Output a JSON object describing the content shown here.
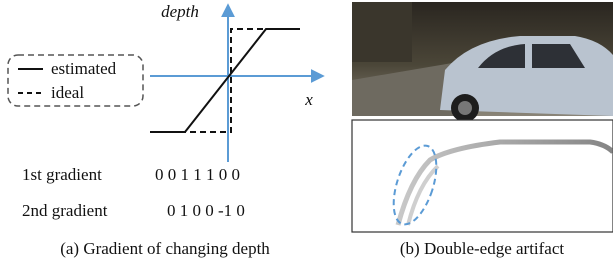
{
  "axes": {
    "y_label": "depth",
    "x_label": "x"
  },
  "legend": {
    "estimated": "estimated",
    "ideal": "ideal"
  },
  "gradients": [
    {
      "label": "1st gradient",
      "values": "0 0 1 1 1 0 0"
    },
    {
      "label": "2nd gradient",
      "values": "0 1 0 0 -1 0"
    }
  ],
  "captions": {
    "a": "(a) Gradient of changing depth",
    "b": "(b) Double-edge artifact"
  }
}
